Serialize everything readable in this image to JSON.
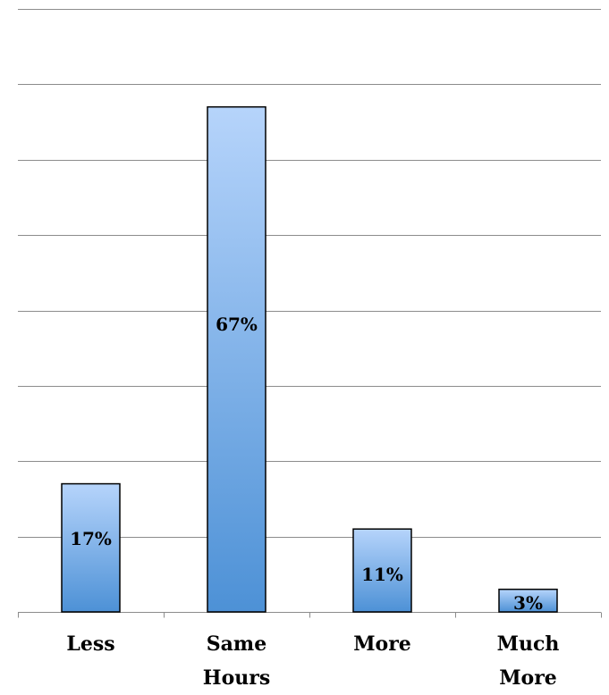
{
  "chart_data": {
    "type": "bar",
    "categories": [
      "Less",
      "Same Hours",
      "More",
      "Much More"
    ],
    "category_lines": [
      [
        "Less"
      ],
      [
        "Same",
        "Hours"
      ],
      [
        "More"
      ],
      [
        "Much",
        "More"
      ]
    ],
    "values": [
      17,
      67,
      11,
      3
    ],
    "data_labels": [
      "17%",
      "67%",
      "11%",
      "3%"
    ],
    "title": "",
    "xlabel": "",
    "ylabel": "",
    "ylim": [
      0,
      80
    ],
    "y_gridline_step": 10,
    "grid": true,
    "legend": "none",
    "bar_color_top": "#b6d4fb",
    "bar_color_bottom": "#4d91d6",
    "bar_border_color": "#000000"
  }
}
